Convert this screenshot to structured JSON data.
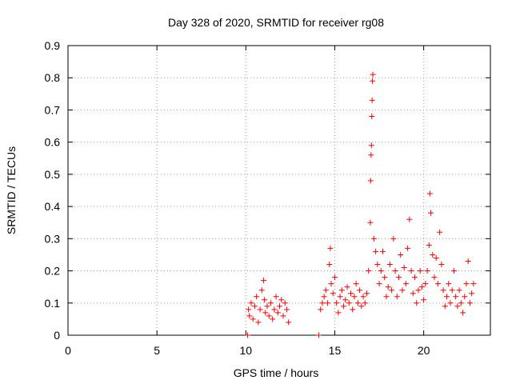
{
  "chart_data": {
    "type": "scatter",
    "title": "Day 328 of 2020, SRMTID for receiver rg08",
    "xlabel": "GPS time / hours",
    "ylabel": "SRMTID / TECUs",
    "xlim": [
      0,
      23.75
    ],
    "ylim": [
      0,
      0.9
    ],
    "xticks": [
      0,
      5,
      10,
      15,
      20
    ],
    "yticks": [
      0,
      0.1,
      0.2,
      0.3,
      0.4,
      0.5,
      0.6,
      0.7,
      0.8,
      0.9
    ],
    "xtick_labels": [
      "0",
      "5",
      "10",
      "15",
      "20"
    ],
    "ytick_labels": [
      "0",
      "0.1",
      "0.2",
      "0.3",
      "0.4",
      "0.5",
      "0.6",
      "0.7",
      "0.8",
      "0.9"
    ],
    "grid": true,
    "marker": "+",
    "color": "#ff0000",
    "series": [
      {
        "name": "SRMTID",
        "points": [
          [
            10.1,
            0.0
          ],
          [
            10.15,
            0.08
          ],
          [
            10.2,
            0.06
          ],
          [
            10.3,
            0.1
          ],
          [
            10.4,
            0.05
          ],
          [
            10.5,
            0.09
          ],
          [
            10.6,
            0.12
          ],
          [
            10.7,
            0.04
          ],
          [
            10.8,
            0.08
          ],
          [
            10.9,
            0.14
          ],
          [
            11.0,
            0.17
          ],
          [
            11.05,
            0.11
          ],
          [
            11.1,
            0.07
          ],
          [
            11.2,
            0.09
          ],
          [
            11.3,
            0.06
          ],
          [
            11.4,
            0.1
          ],
          [
            11.5,
            0.05
          ],
          [
            11.6,
            0.08
          ],
          [
            11.7,
            0.12
          ],
          [
            11.8,
            0.07
          ],
          [
            11.9,
            0.09
          ],
          [
            12.0,
            0.11
          ],
          [
            12.1,
            0.06
          ],
          [
            12.2,
            0.1
          ],
          [
            12.3,
            0.08
          ],
          [
            12.4,
            0.04
          ],
          [
            14.1,
            0.0
          ],
          [
            14.2,
            0.08
          ],
          [
            14.3,
            0.1
          ],
          [
            14.4,
            0.12
          ],
          [
            14.5,
            0.14
          ],
          [
            14.6,
            0.1
          ],
          [
            14.7,
            0.22
          ],
          [
            14.75,
            0.27
          ],
          [
            14.8,
            0.16
          ],
          [
            14.9,
            0.13
          ],
          [
            15.0,
            0.18
          ],
          [
            15.1,
            0.1
          ],
          [
            15.2,
            0.07
          ],
          [
            15.3,
            0.12
          ],
          [
            15.4,
            0.14
          ],
          [
            15.5,
            0.09
          ],
          [
            15.6,
            0.11
          ],
          [
            15.7,
            0.15
          ],
          [
            15.8,
            0.1
          ],
          [
            15.9,
            0.13
          ],
          [
            16.0,
            0.08
          ],
          [
            16.1,
            0.12
          ],
          [
            16.2,
            0.16
          ],
          [
            16.3,
            0.1
          ],
          [
            16.4,
            0.14
          ],
          [
            16.5,
            0.09
          ],
          [
            16.6,
            0.12
          ],
          [
            16.7,
            0.1
          ],
          [
            16.8,
            0.13
          ],
          [
            16.9,
            0.2
          ],
          [
            17.0,
            0.35
          ],
          [
            17.02,
            0.48
          ],
          [
            17.04,
            0.56
          ],
          [
            17.06,
            0.59
          ],
          [
            17.08,
            0.68
          ],
          [
            17.1,
            0.73
          ],
          [
            17.12,
            0.79
          ],
          [
            17.14,
            0.81
          ],
          [
            17.2,
            0.3
          ],
          [
            17.3,
            0.26
          ],
          [
            17.4,
            0.22
          ],
          [
            17.5,
            0.16
          ],
          [
            17.6,
            0.2
          ],
          [
            17.7,
            0.26
          ],
          [
            17.8,
            0.18
          ],
          [
            17.9,
            0.12
          ],
          [
            18.0,
            0.15
          ],
          [
            18.1,
            0.22
          ],
          [
            18.2,
            0.14
          ],
          [
            18.3,
            0.3
          ],
          [
            18.4,
            0.2
          ],
          [
            18.5,
            0.12
          ],
          [
            18.6,
            0.18
          ],
          [
            18.7,
            0.25
          ],
          [
            18.8,
            0.14
          ],
          [
            18.9,
            0.21
          ],
          [
            19.0,
            0.16
          ],
          [
            19.1,
            0.27
          ],
          [
            19.2,
            0.36
          ],
          [
            19.3,
            0.2
          ],
          [
            19.4,
            0.13
          ],
          [
            19.5,
            0.18
          ],
          [
            19.6,
            0.1
          ],
          [
            19.7,
            0.14
          ],
          [
            19.8,
            0.2
          ],
          [
            19.9,
            0.15
          ],
          [
            20.0,
            0.11
          ],
          [
            20.1,
            0.16
          ],
          [
            20.2,
            0.2
          ],
          [
            20.3,
            0.28
          ],
          [
            20.35,
            0.44
          ],
          [
            20.4,
            0.38
          ],
          [
            20.5,
            0.25
          ],
          [
            20.6,
            0.18
          ],
          [
            20.7,
            0.24
          ],
          [
            20.8,
            0.16
          ],
          [
            20.9,
            0.32
          ],
          [
            21.0,
            0.22
          ],
          [
            21.1,
            0.14
          ],
          [
            21.2,
            0.09
          ],
          [
            21.3,
            0.12
          ],
          [
            21.4,
            0.16
          ],
          [
            21.5,
            0.1
          ],
          [
            21.6,
            0.14
          ],
          [
            21.7,
            0.2
          ],
          [
            21.8,
            0.12
          ],
          [
            21.9,
            0.09
          ],
          [
            22.0,
            0.14
          ],
          [
            22.1,
            0.1
          ],
          [
            22.2,
            0.07
          ],
          [
            22.3,
            0.12
          ],
          [
            22.4,
            0.16
          ],
          [
            22.5,
            0.23
          ],
          [
            22.6,
            0.1
          ],
          [
            22.7,
            0.13
          ],
          [
            22.8,
            0.16
          ]
        ]
      }
    ]
  }
}
